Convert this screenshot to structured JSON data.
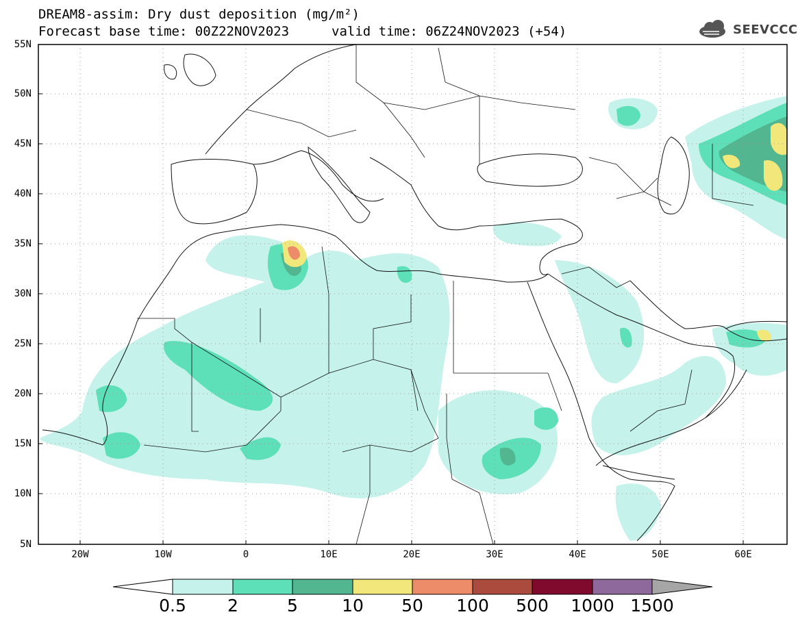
{
  "header": {
    "title_line1": "DREAM8-assim: Dry dust deposition (mg/m²)",
    "base_time": "Forecast base time: 00Z22NOV2023",
    "valid_time": "valid time: 06Z24NOV2023 (+54)"
  },
  "logo": {
    "text": "SEEVCCC",
    "icon": "cloud-icon"
  },
  "axes": {
    "lat_labels": [
      "55N",
      "50N",
      "45N",
      "40N",
      "35N",
      "30N",
      "25N",
      "20N",
      "15N",
      "10N",
      "5N"
    ],
    "lon_labels": [
      "20W",
      "10W",
      "0",
      "10E",
      "20E",
      "30E",
      "40E",
      "50E",
      "60E"
    ],
    "lat_range": [
      5,
      55
    ],
    "lon_range": [
      -25,
      65
    ],
    "grid": "dotted"
  },
  "colorbar": {
    "labels": [
      "0.5",
      "2",
      "5",
      "10",
      "50",
      "100",
      "500",
      "1000",
      "1500"
    ],
    "colors": [
      "#c5f2ea",
      "#5de0b8",
      "#52b690",
      "#f2e77a",
      "#ec8c68",
      "#ab4b3d",
      "#7f0a2e",
      "#8e6a9c",
      "#a6a6a6"
    ],
    "under_color": "#ffffff"
  }
}
